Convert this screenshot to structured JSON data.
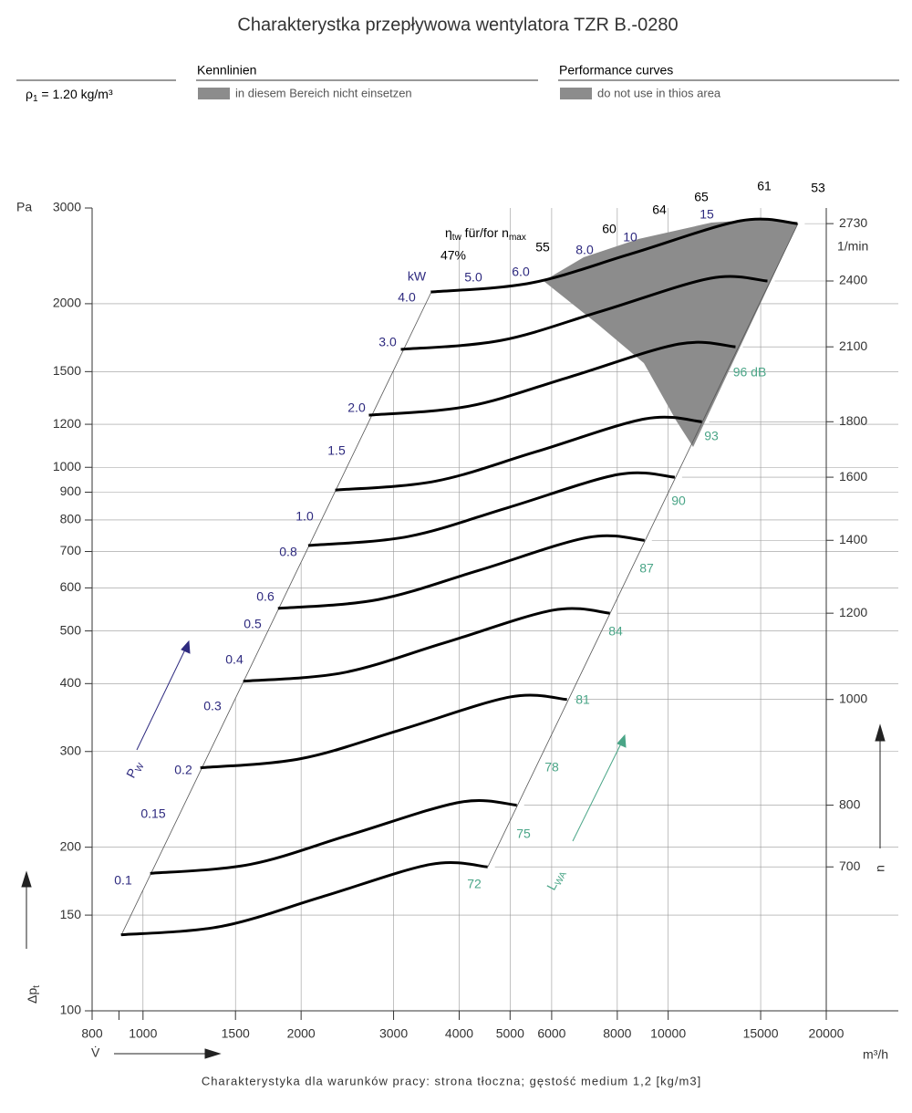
{
  "header": {
    "title": "Charakterystka przepływowa wentylatora TZR B.-0280",
    "density_symbol": "ρ",
    "density_sub": "1",
    "density_value": " = 1.20 kg/m³",
    "de_heading": "Kennlinien",
    "de_note": "in diesem Bereich nicht einsetzen",
    "en_heading": "Performance curves",
    "en_note": "do not use in thios area"
  },
  "chart_data": {
    "type": "line",
    "x_unit": "m³/h",
    "x_symbol": "V̇",
    "y_unit": "Pa",
    "y_symbol": "Δp",
    "y_symbol_sub": "t",
    "n_symbol": "n",
    "n_unit": "1/min",
    "power_symbol": "P",
    "power_symbol_sub": "W",
    "power_unit": "kW",
    "noise_symbol": "L",
    "noise_symbol_sub": "WA",
    "eff_symbol": "η",
    "eff_sub": "tw",
    "eff_text": " für/for n",
    "eff_text_sub": "max",
    "power_labels": [
      "0.1",
      "0.15",
      "0.2",
      "0.3",
      "0.4",
      "0.5",
      "0.6",
      "0.8",
      "1.0",
      "1.5",
      "2.0",
      "3.0",
      "4.0",
      "5.0",
      "6.0",
      "8.0",
      "10",
      "15"
    ],
    "efficiency_labels": [
      "47%",
      "55",
      "60",
      "64",
      "65",
      "61",
      "53"
    ],
    "noise_labels": [
      "72",
      "75",
      "78",
      "81",
      "84",
      "87",
      "90",
      "93",
      "96 dB"
    ],
    "xlim": [
      800,
      20000
    ],
    "ylim": [
      100,
      3000
    ],
    "log_x": true,
    "log_y": true,
    "grid": true,
    "xticks": [
      800,
      1000,
      1500,
      2000,
      3000,
      4000,
      5000,
      6000,
      8000,
      10000,
      15000,
      20000
    ],
    "xminor_ticks": [
      900
    ],
    "yticks": [
      100,
      150,
      200,
      300,
      400,
      500,
      600,
      700,
      800,
      900,
      1000,
      1200,
      1500,
      2000,
      3000
    ],
    "series": [
      {
        "name": "700",
        "color": "#000000",
        "x": [
          908,
          1409,
          2188,
          3532,
          4531
        ],
        "values": [
          138,
          143,
          162,
          186,
          184
        ]
      },
      {
        "name": "800",
        "color": "#000000",
        "x": [
          1032,
          1602,
          2487,
          4014,
          5150
        ],
        "values": [
          179,
          186,
          211,
          242,
          239
        ]
      },
      {
        "name": "1000",
        "color": "#000000",
        "x": [
          1286,
          1996,
          3099,
          5003,
          6417
        ],
        "values": [
          280,
          291,
          329,
          378,
          374
        ]
      },
      {
        "name": "1200",
        "color": "#000000",
        "x": [
          1552,
          2409,
          3740,
          6037,
          7744
        ],
        "values": [
          404,
          419,
          475,
          546,
          539
        ]
      },
      {
        "name": "1400",
        "color": "#000000",
        "x": [
          1807,
          2804,
          4355,
          7029,
          9017
        ],
        "values": [
          550,
          571,
          646,
          743,
          734
        ]
      },
      {
        "name": "1600",
        "color": "#000000",
        "x": [
          2063,
          3202,
          4972,
          8025,
          10294
        ],
        "values": [
          718,
          746,
          844,
          970,
          959
        ]
      },
      {
        "name": "1800",
        "color": "#000000",
        "x": [
          2323,
          3605,
          5598,
          9036,
          11592
        ],
        "values": [
          908,
          943,
          1068,
          1228,
          1213
        ]
      },
      {
        "name": "2100",
        "color": "#000000",
        "x": [
          2692,
          4178,
          6488,
          10472,
          13433
        ],
        "values": [
          1247,
          1296,
          1466,
          1686,
          1666
        ]
      },
      {
        "name": "2400",
        "color": "#000000",
        "x": [
          3097,
          4806,
          7464,
          12047,
          15454
        ],
        "values": [
          1648,
          1712,
          1938,
          2228,
          2202
        ]
      },
      {
        "name": "2730",
        "color": "#000000",
        "x": [
          3532,
          5482,
          8512,
          13739,
          17625
        ],
        "values": [
          2102,
          2184,
          2472,
          2842,
          2808
        ]
      }
    ],
    "power_color": "#2e2a7f",
    "noise_color": "#4aa587",
    "footnote": "Charakterystyka dla warunków pracy: strona tłoczna; gęstość medium 1,2 [kg/m3]"
  }
}
